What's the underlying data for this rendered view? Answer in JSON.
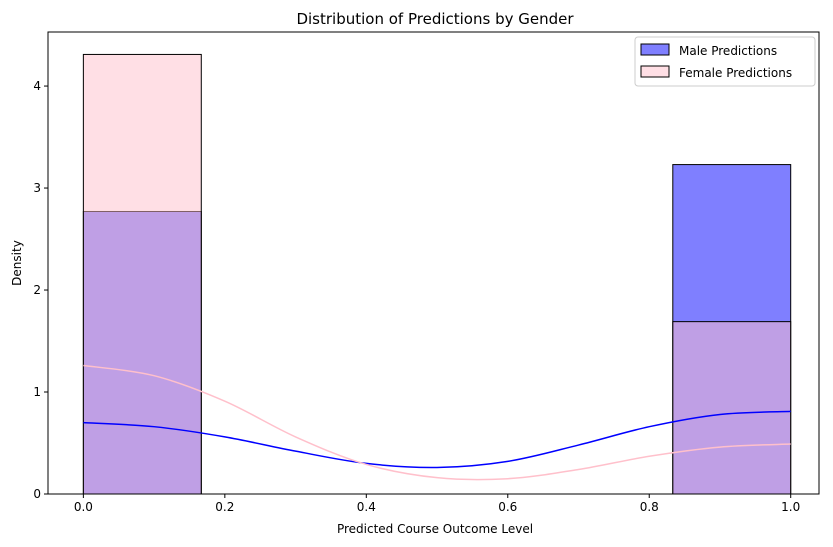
{
  "chart_data": {
    "type": "bar",
    "title": "Distribution of Predictions by Gender",
    "xlabel": "Predicted Course Outcome Level",
    "ylabel": "Density",
    "xlim": [
      -0.05,
      1.04
    ],
    "ylim": [
      0,
      4.53
    ],
    "xticks": [
      0.0,
      0.2,
      0.4,
      0.6,
      0.8,
      1.0
    ],
    "xtick_labels": [
      "0.0",
      "0.2",
      "0.4",
      "0.6",
      "0.8",
      "1.0"
    ],
    "yticks": [
      0,
      1,
      2,
      3,
      4
    ],
    "ytick_labels": [
      "0",
      "1",
      "2",
      "3",
      "4"
    ],
    "grid": false,
    "legend_position": "top-right",
    "series": [
      {
        "name": "Male Predictions",
        "color": "#0000ff",
        "bins": [
          {
            "x0": 0.0,
            "x1": 0.1667,
            "density": 2.77
          },
          {
            "x0": 0.8333,
            "x1": 1.0,
            "density": 3.23
          }
        ],
        "kde": [
          [
            0.0,
            0.7
          ],
          [
            0.1,
            0.66
          ],
          [
            0.2,
            0.56
          ],
          [
            0.3,
            0.42
          ],
          [
            0.4,
            0.3
          ],
          [
            0.5,
            0.26
          ],
          [
            0.6,
            0.32
          ],
          [
            0.7,
            0.48
          ],
          [
            0.8,
            0.66
          ],
          [
            0.9,
            0.78
          ],
          [
            1.0,
            0.81
          ]
        ]
      },
      {
        "name": "Female Predictions",
        "color": "#ffc0cb",
        "bins": [
          {
            "x0": 0.0,
            "x1": 0.1667,
            "density": 4.31
          },
          {
            "x0": 0.8333,
            "x1": 1.0,
            "density": 1.69
          }
        ],
        "kde": [
          [
            0.0,
            1.26
          ],
          [
            0.1,
            1.16
          ],
          [
            0.2,
            0.91
          ],
          [
            0.3,
            0.56
          ],
          [
            0.4,
            0.29
          ],
          [
            0.5,
            0.16
          ],
          [
            0.6,
            0.15
          ],
          [
            0.7,
            0.24
          ],
          [
            0.8,
            0.37
          ],
          [
            0.9,
            0.46
          ],
          [
            1.0,
            0.49
          ]
        ]
      }
    ]
  }
}
